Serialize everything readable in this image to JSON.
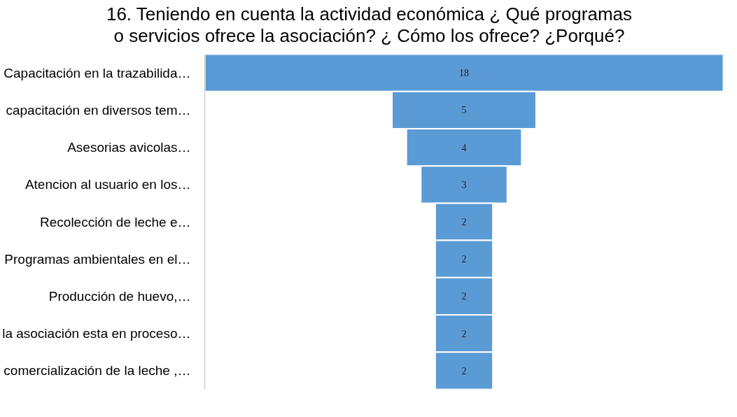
{
  "chart_data": {
    "type": "other",
    "title": "16. Teniendo en cuenta la actividad económica ¿ Qué programas o servicios ofrece la asociación? ¿ Cómo los ofrece? ¿Porqué?",
    "categories": [
      "Capacitación en la trazabilida…",
      "capacitación en diversos tem…",
      "Asesorias avicolas…",
      "Atencion al usuario en los…",
      "Recolección de leche e…",
      "Programas ambientales en el…",
      "Producción de huevo,…",
      "la asociación esta en proceso…",
      "comercialización de la leche ,…"
    ],
    "values": [
      18,
      5,
      4,
      3,
      2,
      2,
      2,
      2,
      2
    ],
    "color": "#5b9bd5",
    "data_labels": true
  }
}
